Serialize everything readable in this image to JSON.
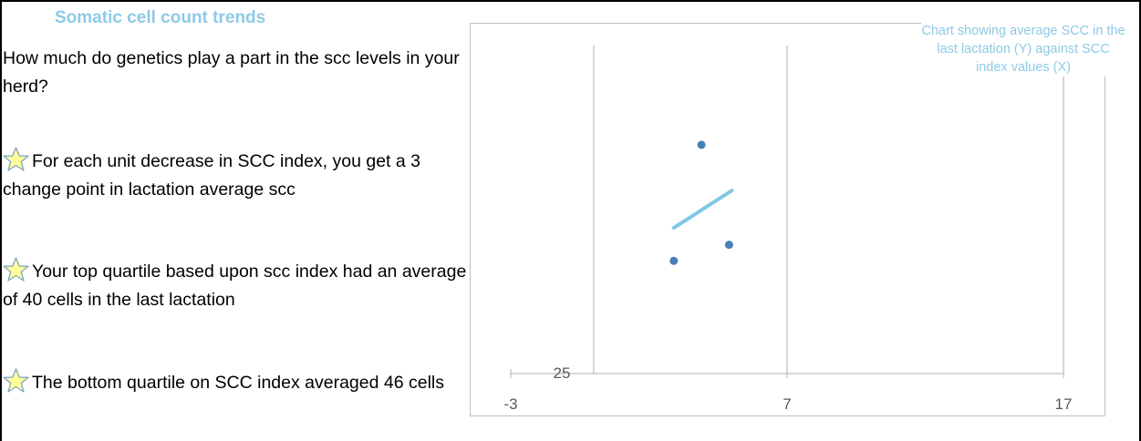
{
  "panel": {
    "heading": "Somatic cell count trends",
    "intro": "How much do genetics play a part in the scc levels in your herd?",
    "points": [
      {
        "icon": "star-icon",
        "text": "For each unit decrease in SCC index, you get a 3 change point in lactation average scc"
      },
      {
        "icon": "star-icon",
        "text": "Your top quartile based upon scc index had an average of 40 cells in the last lactation"
      },
      {
        "icon": "star-icon",
        "text": "The bottom quartile on SCC index averaged 46 cells"
      }
    ]
  },
  "colors": {
    "accent": "#8ecae6",
    "marker": "#4a7ebb",
    "trendline": "#7ec8e3",
    "gridline": "#bfbfbf",
    "star_fill": "#ffff99",
    "star_stroke": "#7fa3c8"
  },
  "chart_data": {
    "type": "scatter",
    "title": "Chart showing average SCC in the last lactation (Y) against SCC index values (X)",
    "xlabel": "",
    "ylabel": "",
    "xlim": [
      -3,
      17
    ],
    "x_ticks": [
      "-3",
      "7",
      "17"
    ],
    "y_ticks": [
      "25"
    ],
    "grid": "vertical",
    "series": [
      {
        "type": "scatter",
        "points": [
          [
            3.9,
            52
          ],
          [
            2.9,
            38.3
          ],
          [
            4.9,
            40.2
          ]
        ]
      },
      {
        "type": "line",
        "style": "trendline",
        "points": [
          [
            2.9,
            42.2
          ],
          [
            5.0,
            46.6
          ]
        ]
      }
    ]
  }
}
